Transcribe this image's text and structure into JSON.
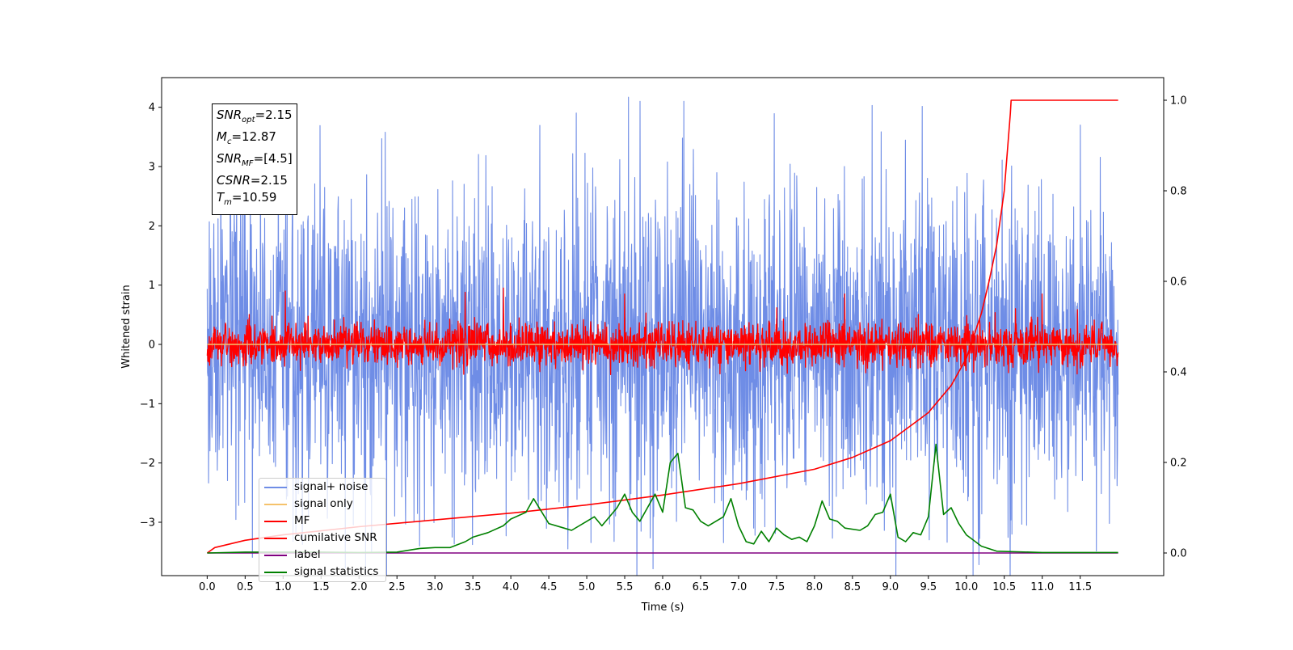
{
  "chart_data": {
    "type": "line",
    "xlabel": "Time (s)",
    "ylabel": "Whitened strain",
    "xlim": [
      -0.6,
      12.6
    ],
    "ylim": [
      -3.9,
      4.5
    ],
    "y2lim": [
      -0.05,
      1.05
    ],
    "x_ticks": [
      "0.0",
      "0.5",
      "1.0",
      "1.5",
      "2.0",
      "2.5",
      "3.0",
      "3.5",
      "4.0",
      "4.5",
      "5.0",
      "5.5",
      "6.0",
      "6.5",
      "7.0",
      "7.5",
      "8.0",
      "8.5",
      "9.0",
      "9.5",
      "10.0",
      "10.5",
      "11.0",
      "11.5"
    ],
    "y_ticks": [
      -3,
      -2,
      -1,
      0,
      1,
      2,
      3,
      4
    ],
    "y_tick_labels": [
      "−3",
      "−2",
      "−1",
      "0",
      "1",
      "2",
      "3",
      "4"
    ],
    "y2_ticks": [
      "0.0",
      "0.2",
      "0.4",
      "0.6",
      "0.8",
      "1.0"
    ],
    "annotation": {
      "snr_opt": "=2.15",
      "mc": "=12.87",
      "snr_mf": "=[4.5]",
      "csnr": "=2.15",
      "tm": "=10.59"
    },
    "series": [
      {
        "name": "signal+ noise",
        "color": "#6f8de6",
        "axis": "left",
        "style": "noise",
        "x_range": [
          0,
          12
        ],
        "spread": 1.3,
        "extremes": [
          [
            5.55,
            4.17
          ],
          [
            2.8,
            -3.4
          ],
          [
            4.75,
            -3.45
          ],
          [
            2.3,
            3.47
          ],
          [
            10.6,
            -3.2
          ],
          [
            7.2,
            -3.1
          ],
          [
            1.25,
            -3.2
          ],
          [
            11.5,
            3.7
          ]
        ]
      },
      {
        "name": "signal only",
        "color": "#f5c26b",
        "axis": "left",
        "style": "flat",
        "x_range": [
          0,
          12
        ],
        "values": [
          [
            0,
            0
          ],
          [
            12,
            0
          ]
        ]
      },
      {
        "name": "MF",
        "color": "#ff0000",
        "axis": "left",
        "style": "noise",
        "x_range": [
          0,
          12
        ],
        "spread": 0.18,
        "extremes": [
          [
            3.4,
            0.88
          ],
          [
            8.4,
            0.85
          ],
          [
            1.03,
            0.9
          ],
          [
            3.9,
            0.95
          ],
          [
            5.5,
            0.85
          ],
          [
            11.0,
            0.85
          ]
        ]
      },
      {
        "name": "cumilative SNR",
        "color": "#ff0000",
        "axis": "right",
        "style": "line",
        "x": [
          0.0,
          0.1,
          0.5,
          1.0,
          2.0,
          3.0,
          4.0,
          5.0,
          6.0,
          7.0,
          8.0,
          8.5,
          9.0,
          9.5,
          9.8,
          10.0,
          10.2,
          10.3,
          10.4,
          10.5,
          10.58,
          10.59,
          12.0
        ],
        "values": [
          0.0,
          0.012,
          0.028,
          0.04,
          0.058,
          0.073,
          0.088,
          0.106,
          0.128,
          0.153,
          0.185,
          0.211,
          0.248,
          0.31,
          0.37,
          0.43,
          0.53,
          0.6,
          0.68,
          0.8,
          0.97,
          1.0,
          1.0
        ]
      },
      {
        "name": "label",
        "color": "#800080",
        "axis": "right",
        "style": "line",
        "x": [
          0,
          12
        ],
        "values": [
          0,
          0
        ]
      },
      {
        "name": "signal statistics",
        "color": "#008000",
        "axis": "right",
        "style": "line",
        "x": [
          0.0,
          0.5,
          1.0,
          1.5,
          2.0,
          2.5,
          2.8,
          3.0,
          3.2,
          3.4,
          3.5,
          3.7,
          3.9,
          4.0,
          4.2,
          4.3,
          4.5,
          4.7,
          4.8,
          5.0,
          5.1,
          5.2,
          5.4,
          5.5,
          5.6,
          5.7,
          5.8,
          5.9,
          6.0,
          6.1,
          6.2,
          6.3,
          6.4,
          6.5,
          6.6,
          6.8,
          6.9,
          7.0,
          7.1,
          7.2,
          7.3,
          7.4,
          7.5,
          7.6,
          7.7,
          7.8,
          7.9,
          8.0,
          8.1,
          8.2,
          8.3,
          8.4,
          8.6,
          8.7,
          8.8,
          8.9,
          9.0,
          9.1,
          9.2,
          9.3,
          9.4,
          9.5,
          9.6,
          9.7,
          9.8,
          9.9,
          10.0,
          10.2,
          10.4,
          11.0,
          12.0
        ],
        "values": [
          0.0,
          0.002,
          0.002,
          0.002,
          0.001,
          0.002,
          0.01,
          0.012,
          0.012,
          0.025,
          0.035,
          0.045,
          0.06,
          0.075,
          0.09,
          0.12,
          0.065,
          0.055,
          0.05,
          0.07,
          0.08,
          0.06,
          0.1,
          0.13,
          0.09,
          0.07,
          0.1,
          0.13,
          0.09,
          0.2,
          0.22,
          0.1,
          0.095,
          0.07,
          0.06,
          0.08,
          0.12,
          0.06,
          0.025,
          0.02,
          0.048,
          0.025,
          0.055,
          0.04,
          0.03,
          0.035,
          0.025,
          0.06,
          0.115,
          0.075,
          0.07,
          0.055,
          0.05,
          0.06,
          0.085,
          0.09,
          0.13,
          0.035,
          0.025,
          0.045,
          0.04,
          0.08,
          0.24,
          0.085,
          0.1,
          0.065,
          0.04,
          0.015,
          0.004,
          0.001,
          0.001
        ]
      }
    ]
  }
}
